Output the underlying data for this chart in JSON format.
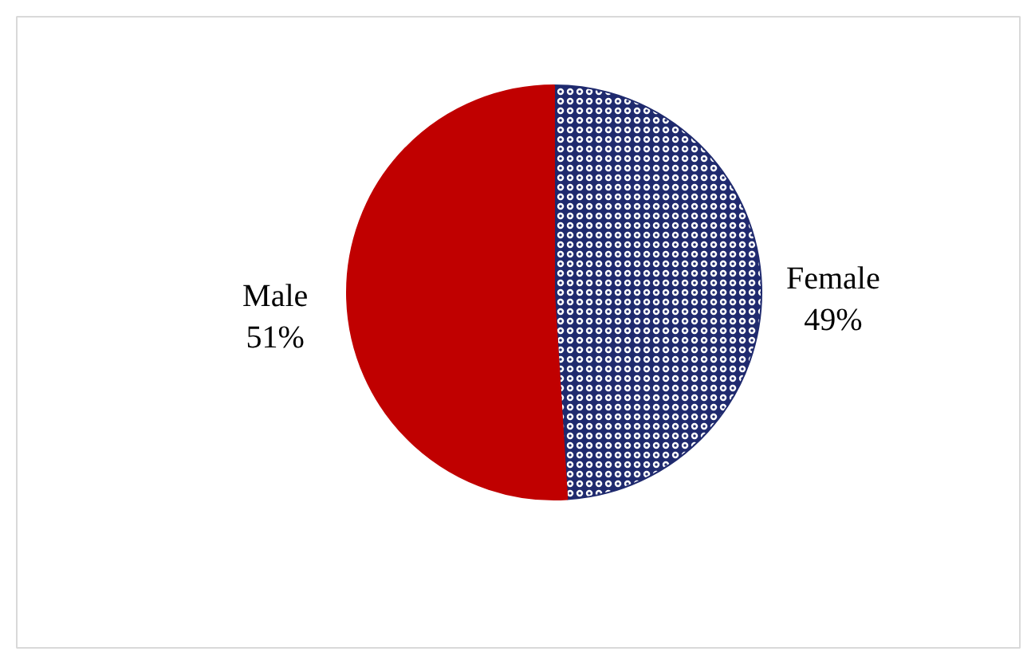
{
  "chart_data": {
    "type": "pie",
    "categories": [
      "Female",
      "Male"
    ],
    "values": [
      49,
      51
    ],
    "colors": [
      "#1f2a6e",
      "#c00000"
    ],
    "value_labels": [
      "49%",
      "51%"
    ]
  }
}
